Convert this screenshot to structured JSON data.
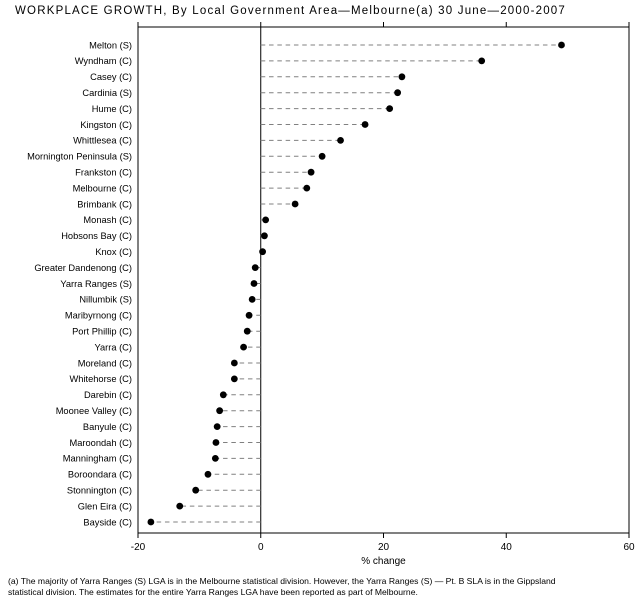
{
  "title": "WORKPLACE GROWTH, By Local Government Area—Melbourne(a) 30 June—2000-2007",
  "footnote": {
    "line1": "(a) The majority of Yarra Ranges (S) LGA is in the Melbourne statistical division. However, the Yarra Ranges (S) — Pt. B SLA is in the Gippsland",
    "line2": "statistical division. The estimates for the entire Yarra Ranges LGA have been reported as part of Melbourne."
  },
  "chart_data": {
    "type": "scatter",
    "subtype": "horizontal-dot-plot",
    "title": "WORKPLACE GROWTH, By Local Government Area—Melbourne(a) 30 June—2000-2007",
    "xlabel": "% change",
    "xlim": [
      -20,
      60
    ],
    "xticks": [
      -20,
      0,
      20,
      40,
      60
    ],
    "baseline": 0,
    "grid": false,
    "legend": "none",
    "categories": [
      "Melton (S)",
      "Wyndham (C)",
      "Casey (C)",
      "Cardinia (S)",
      "Hume (C)",
      "Kingston (C)",
      "Whittlesea (C)",
      "Mornington Peninsula (S)",
      "Frankston (C)",
      "Melbourne (C)",
      "Brimbank (C)",
      "Monash (C)",
      "Hobsons Bay (C)",
      "Knox (C)",
      "Greater Dandenong (C)",
      "Yarra Ranges (S)",
      "Nillumbik (S)",
      "Maribyrnong (C)",
      "Port Phillip (C)",
      "Yarra (C)",
      "Moreland (C)",
      "Whitehorse (C)",
      "Darebin (C)",
      "Moonee Valley (C)",
      "Banyule (C)",
      "Maroondah (C)",
      "Manningham (C)",
      "Boroondara (C)",
      "Stonnington (C)",
      "Glen Eira (C)",
      "Bayside (C)"
    ],
    "values": [
      49,
      36,
      23,
      22.3,
      21,
      17,
      13,
      10,
      8.2,
      7.5,
      5.6,
      0.8,
      0.6,
      0.3,
      -0.9,
      -1.1,
      -1.4,
      -1.9,
      -2.2,
      -2.8,
      -4.3,
      -4.3,
      -6.1,
      -6.7,
      -7.1,
      -7.3,
      -7.4,
      -8.6,
      -10.6,
      -13.2,
      -17.9
    ],
    "colors": {
      "dot": "#000000",
      "dash_line": "#808080",
      "axis": "#000000",
      "text": "#000000",
      "background": "#ffffff"
    }
  }
}
